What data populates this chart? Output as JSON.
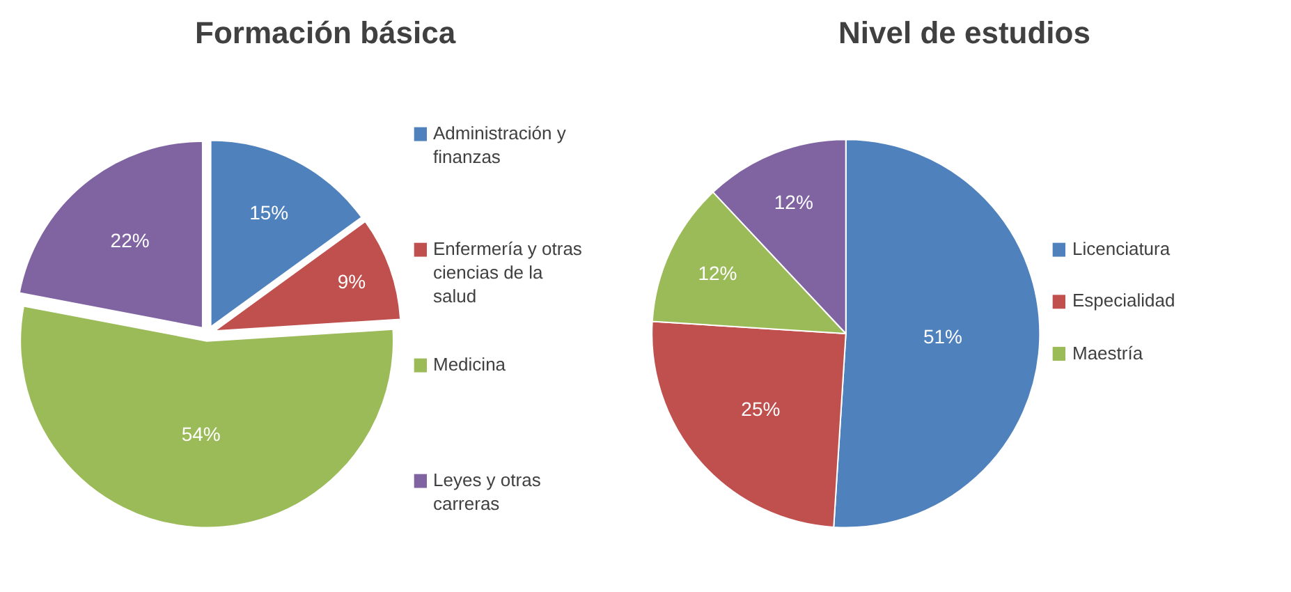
{
  "chart_data": [
    {
      "type": "pie",
      "title": "Formación básica",
      "categories": [
        "Administración y finanzas",
        "Enfermería y otras ciencias de la salud",
        "Medicina",
        "Leyes y otras carreras"
      ],
      "values": [
        15,
        9,
        54,
        22
      ],
      "colors": [
        "#4f81bd",
        "#c0504d",
        "#9bbb59",
        "#8064a2"
      ],
      "value_labels": [
        "15%",
        "9%",
        "54%",
        "22%"
      ],
      "legend": "right"
    },
    {
      "type": "pie",
      "title": "Nivel de estudios",
      "categories": [
        "Licenciatura",
        "Especialidad",
        "Maestría",
        null
      ],
      "values": [
        51,
        25,
        12,
        12
      ],
      "colors": [
        "#4f81bd",
        "#c0504d",
        "#9bbb59",
        "#8064a2"
      ],
      "value_labels": [
        "51%",
        "25%",
        "12%",
        "12%"
      ],
      "legend": "right"
    }
  ]
}
